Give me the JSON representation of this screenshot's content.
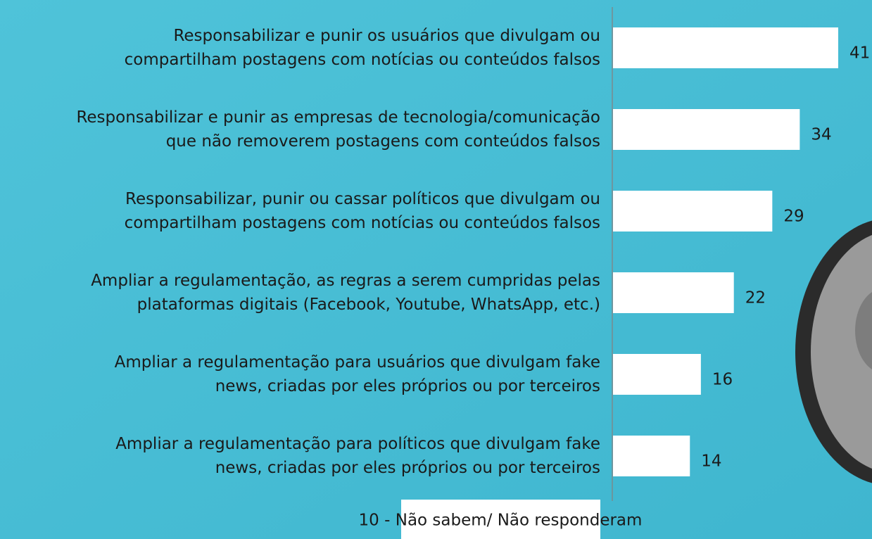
{
  "chart_data": {
    "type": "bar",
    "orientation": "horizontal",
    "categories": [
      [
        "Responsabilizar e punir os usuários que divulgam ou",
        "compartilham postagens com notícias ou conteúdos falsos"
      ],
      [
        "Responsabilizar e punir as empresas de tecnologia/comunicação",
        "que não removerem postagens com conteúdos falsos"
      ],
      [
        "Responsabilizar, punir ou cassar políticos que divulgam ou",
        "compartilham postagens com notícias ou conteúdos falsos"
      ],
      [
        "Ampliar a regulamentação, as regras a serem cumpridas pelas",
        "plataformas digitais (Facebook, Youtube, WhatsApp, etc.)"
      ],
      [
        "Ampliar a regulamentação para usuários que divulgam fake",
        "news, criadas por eles próprios ou por terceiros"
      ],
      [
        "Ampliar a regulamentação para políticos que divulgam fake",
        "news, criadas por eles próprios ou por terceiros"
      ]
    ],
    "values": [
      41,
      34,
      29,
      22,
      16,
      14
    ],
    "color": "#ffffff",
    "note": "10 - Não sabem/ Não responderam"
  }
}
